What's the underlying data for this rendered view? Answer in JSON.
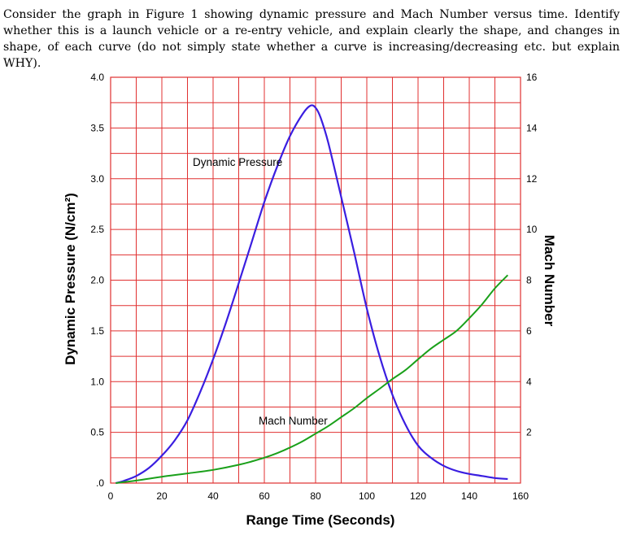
{
  "question_text": "Consider the graph in Figure 1 showing dynamic pressure and Mach Number versus time.  Identify whether this is a launch vehicle or a re-entry vehicle, and explain clearly the shape, and changes in shape, of each curve (do not simply state whether a curve is increasing/decreasing etc. but explain WHY).",
  "chart_data": {
    "type": "line",
    "xlabel": "Range Time (Seconds)",
    "ylabel_left": "Dynamic Pressure (N/cm²)",
    "ylabel_right": "Mach Number",
    "xlim": [
      0,
      160
    ],
    "ylim_left": [
      0,
      4.0
    ],
    "ylim_right": [
      0,
      16
    ],
    "grid": true,
    "x_ticks": [
      "0",
      "20",
      "40",
      "60",
      "80",
      "100",
      "120",
      "140",
      "160"
    ],
    "y_ticks_left": [
      ".0",
      "0.5",
      "1.0",
      "1.5",
      "2.0",
      "2.5",
      "3.0",
      "3.5",
      "4.0"
    ],
    "y_ticks_right": [
      "2",
      "4",
      "6",
      "8",
      "10",
      "12",
      "14",
      "16"
    ],
    "colors": {
      "grid": "#e03030",
      "dynamic_pressure": "#3a1ee0",
      "mach_number": "#1aa01a"
    },
    "series": [
      {
        "name": "Dynamic Pressure",
        "axis": "left",
        "x": [
          2,
          5,
          10,
          15,
          20,
          25,
          30,
          35,
          40,
          45,
          50,
          55,
          60,
          65,
          70,
          75,
          78,
          80,
          82,
          85,
          90,
          95,
          100,
          105,
          110,
          115,
          120,
          125,
          130,
          135,
          140,
          145,
          150,
          155
        ],
        "y": [
          0.0,
          0.02,
          0.07,
          0.15,
          0.27,
          0.42,
          0.62,
          0.9,
          1.22,
          1.58,
          1.97,
          2.37,
          2.77,
          3.12,
          3.42,
          3.64,
          3.72,
          3.7,
          3.6,
          3.35,
          2.82,
          2.28,
          1.72,
          1.25,
          0.87,
          0.58,
          0.37,
          0.25,
          0.17,
          0.12,
          0.09,
          0.07,
          0.05,
          0.04
        ]
      },
      {
        "name": "Mach Number",
        "axis": "right",
        "x": [
          2,
          10,
          20,
          30,
          40,
          50,
          55,
          60,
          65,
          70,
          75,
          80,
          85,
          90,
          95,
          100,
          105,
          110,
          115,
          120,
          125,
          130,
          135,
          140,
          145,
          150,
          155
        ],
        "y": [
          0.0,
          0.1,
          0.25,
          0.38,
          0.52,
          0.72,
          0.85,
          1.0,
          1.18,
          1.4,
          1.65,
          1.95,
          2.25,
          2.6,
          2.95,
          3.35,
          3.72,
          4.1,
          4.45,
          4.88,
          5.3,
          5.65,
          6.0,
          6.5,
          7.05,
          7.68,
          8.2
        ]
      }
    ],
    "annotations": [
      "Dynamic Pressure",
      "Mach Number"
    ]
  }
}
